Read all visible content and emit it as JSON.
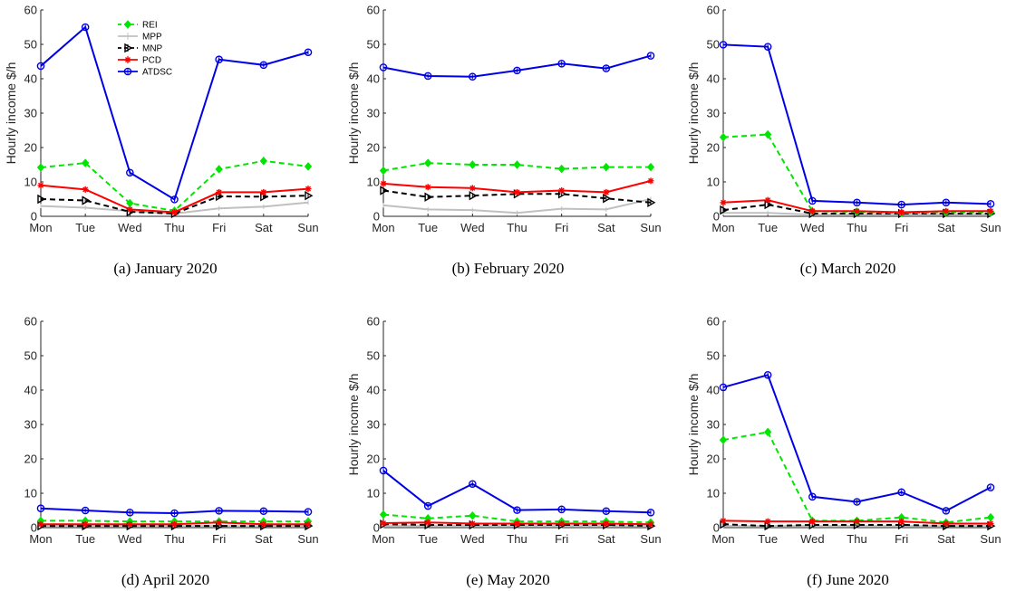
{
  "series_styles": {
    "REI": {
      "color": "#00e600",
      "dash": "6,4",
      "marker": "diamond"
    },
    "MPP": {
      "color": "#c0c0c0",
      "dash": "",
      "marker": "none"
    },
    "MNP": {
      "color": "#000000",
      "dash": "6,4",
      "marker": "triangle-right"
    },
    "PCD": {
      "color": "#ff0000",
      "dash": "",
      "marker": "star"
    },
    "ATDSC": {
      "color": "#0000e6",
      "dash": "",
      "marker": "circle"
    }
  },
  "chart_data": [
    {
      "type": "line",
      "caption": "(a) January 2020",
      "categories": [
        "Mon",
        "Tue",
        "Wed",
        "Thu",
        "Fri",
        "Sat",
        "Sun"
      ],
      "ylabel": "Hourly income $/h",
      "ylim": [
        0,
        60
      ],
      "yticks": [
        0,
        10,
        20,
        30,
        40,
        50,
        60
      ],
      "legend": {
        "entries": [
          "REI",
          "MPP",
          "MNP",
          "PCD",
          "ATDSC"
        ],
        "placement": "top-left"
      },
      "series": [
        {
          "name": "REI",
          "values": [
            14.2,
            15.5,
            3.8,
            1.6,
            13.7,
            16.1,
            14.5
          ]
        },
        {
          "name": "MPP",
          "values": [
            3.0,
            2.5,
            1.5,
            0.8,
            2.3,
            2.8,
            4.0
          ]
        },
        {
          "name": "MNP",
          "values": [
            5.0,
            4.6,
            1.3,
            0.8,
            5.8,
            5.7,
            6.0
          ]
        },
        {
          "name": "PCD",
          "values": [
            9.0,
            7.8,
            2.0,
            1.2,
            7.0,
            7.0,
            8.0
          ]
        },
        {
          "name": "ATDSC",
          "values": [
            43.7,
            55.0,
            12.7,
            4.9,
            45.6,
            44.0,
            47.7
          ]
        }
      ]
    },
    {
      "type": "line",
      "caption": "(b) February 2020",
      "categories": [
        "Mon",
        "Tue",
        "Wed",
        "Thu",
        "Fri",
        "Sat",
        "Sun"
      ],
      "ylabel": "Hourly income $/h",
      "ylim": [
        0,
        60
      ],
      "yticks": [
        0,
        10,
        20,
        30,
        40,
        50,
        60
      ],
      "series": [
        {
          "name": "REI",
          "values": [
            13.3,
            15.5,
            15.0,
            15.0,
            13.8,
            14.3,
            14.3
          ]
        },
        {
          "name": "MPP",
          "values": [
            3.2,
            2.0,
            1.8,
            1.0,
            2.2,
            2.0,
            5.0
          ]
        },
        {
          "name": "MNP",
          "values": [
            7.5,
            5.6,
            6.0,
            6.5,
            6.5,
            5.2,
            4.0
          ]
        },
        {
          "name": "PCD",
          "values": [
            9.5,
            8.5,
            8.2,
            7.0,
            7.5,
            7.0,
            10.3
          ]
        },
        {
          "name": "ATDSC",
          "values": [
            43.3,
            40.8,
            40.6,
            42.4,
            44.4,
            43.0,
            46.7
          ]
        }
      ]
    },
    {
      "type": "line",
      "caption": "(c) March 2020",
      "categories": [
        "Mon",
        "Tue",
        "Wed",
        "Thu",
        "Fri",
        "Sat",
        "Sun"
      ],
      "ylabel": "Hourly income $/h",
      "ylim": [
        0,
        60
      ],
      "yticks": [
        0,
        10,
        20,
        30,
        40,
        50,
        60
      ],
      "series": [
        {
          "name": "REI",
          "values": [
            23.0,
            23.8,
            1.5,
            1.3,
            1.0,
            1.2,
            1.2
          ]
        },
        {
          "name": "MPP",
          "values": [
            1.0,
            1.0,
            0.5,
            0.5,
            0.5,
            0.5,
            0.5
          ]
        },
        {
          "name": "MNP",
          "values": [
            1.8,
            3.4,
            0.8,
            0.8,
            0.8,
            0.8,
            0.8
          ]
        },
        {
          "name": "PCD",
          "values": [
            4.0,
            4.7,
            1.5,
            1.5,
            1.2,
            1.5,
            1.5
          ]
        },
        {
          "name": "ATDSC",
          "values": [
            49.9,
            49.3,
            4.5,
            4.0,
            3.4,
            4.0,
            3.6
          ]
        }
      ]
    },
    {
      "type": "line",
      "caption": "(d) April 2020",
      "categories": [
        "Mon",
        "Tue",
        "Wed",
        "Thu",
        "Fri",
        "Sat",
        "Sun"
      ],
      "ylabel": "",
      "ylim": [
        0,
        60
      ],
      "yticks": [
        0,
        10,
        20,
        30,
        40,
        50,
        60
      ],
      "series": [
        {
          "name": "REI",
          "values": [
            2.0,
            2.0,
            1.8,
            1.8,
            1.8,
            1.8,
            1.8
          ]
        },
        {
          "name": "MPP",
          "values": [
            0.5,
            0.5,
            0.5,
            0.5,
            0.5,
            0.5,
            0.5
          ]
        },
        {
          "name": "MNP",
          "values": [
            0.5,
            0.5,
            0.5,
            0.5,
            0.5,
            0.5,
            0.5
          ]
        },
        {
          "name": "PCD",
          "values": [
            1.0,
            1.0,
            1.0,
            1.0,
            1.5,
            1.0,
            1.0
          ]
        },
        {
          "name": "ATDSC",
          "values": [
            5.6,
            5.0,
            4.4,
            4.2,
            4.9,
            4.8,
            4.6
          ]
        }
      ]
    },
    {
      "type": "line",
      "caption": "(e) May 2020",
      "categories": [
        "Mon",
        "Tue",
        "Wed",
        "Thu",
        "Fri",
        "Sat",
        "Sun"
      ],
      "ylabel": "Hourly income $/h",
      "ylim": [
        0,
        60
      ],
      "yticks": [
        0,
        10,
        20,
        30,
        40,
        50,
        60
      ],
      "series": [
        {
          "name": "REI",
          "values": [
            3.8,
            2.7,
            3.5,
            1.8,
            1.8,
            1.8,
            1.5
          ]
        },
        {
          "name": "MPP",
          "values": [
            0.5,
            0.5,
            0.5,
            0.5,
            0.5,
            0.5,
            0.5
          ]
        },
        {
          "name": "MNP",
          "values": [
            1.0,
            0.8,
            0.8,
            0.8,
            0.8,
            0.8,
            0.5
          ]
        },
        {
          "name": "PCD",
          "values": [
            1.3,
            1.5,
            1.2,
            1.2,
            1.2,
            1.2,
            1.0
          ]
        },
        {
          "name": "ATDSC",
          "values": [
            16.6,
            6.3,
            12.7,
            5.1,
            5.3,
            4.8,
            4.4
          ]
        }
      ]
    },
    {
      "type": "line",
      "caption": "(f) June 2020",
      "categories": [
        "Mon",
        "Tue",
        "Wed",
        "Thu",
        "Fri",
        "Sat",
        "Sun"
      ],
      "ylabel": "Hourly income $/h",
      "ylim": [
        0,
        60
      ],
      "yticks": [
        0,
        10,
        20,
        30,
        40,
        50,
        60
      ],
      "series": [
        {
          "name": "REI",
          "values": [
            25.5,
            27.8,
            2.0,
            2.0,
            3.0,
            1.5,
            3.0
          ]
        },
        {
          "name": "MPP",
          "values": [
            0.5,
            0.5,
            0.5,
            0.5,
            0.5,
            0.5,
            0.5
          ]
        },
        {
          "name": "MNP",
          "values": [
            1.0,
            0.5,
            0.8,
            0.8,
            0.8,
            0.5,
            0.5
          ]
        },
        {
          "name": "PCD",
          "values": [
            2.0,
            1.8,
            1.8,
            1.8,
            1.8,
            1.2,
            1.2
          ]
        },
        {
          "name": "ATDSC",
          "values": [
            40.8,
            44.4,
            9.0,
            7.5,
            10.3,
            4.9,
            11.7
          ]
        }
      ]
    }
  ]
}
